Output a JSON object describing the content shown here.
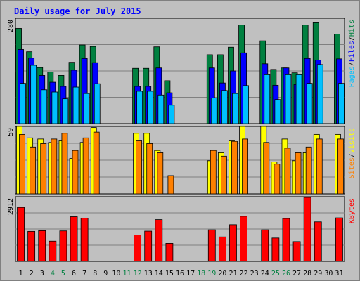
{
  "chart_data": [
    {
      "type": "bar",
      "title": "Daily usage for July 2015",
      "categories": [
        "1",
        "2",
        "3",
        "4",
        "5",
        "6",
        "7",
        "8",
        "9",
        "10",
        "11",
        "12",
        "13",
        "14",
        "15",
        "16",
        "17",
        "18",
        "19",
        "20",
        "21",
        "22",
        "23",
        "24",
        "25",
        "26",
        "27",
        "28",
        "29",
        "30",
        "31"
      ],
      "weekend_days": [
        "4",
        "5",
        "11",
        "12",
        "18",
        "19",
        "25",
        "26"
      ],
      "ylim": [
        0,
        280
      ],
      "max_label": "280",
      "legend_order": [
        "Pages",
        "/",
        "Files",
        "/",
        "Hits"
      ],
      "series": [
        {
          "name": "Hits",
          "color": "#008040",
          "values": [
            253,
            191,
            149,
            137,
            128,
            163,
            209,
            205,
            null,
            null,
            null,
            147,
            147,
            204,
            114,
            null,
            null,
            null,
            183,
            183,
            203,
            262,
            null,
            220,
            144,
            148,
            135,
            262,
            268,
            null,
            238
          ]
        },
        {
          "name": "Files",
          "color": "#0000ff",
          "values": [
            197,
            174,
            128,
            110,
            99,
            142,
            173,
            162,
            null,
            null,
            null,
            99,
            99,
            148,
            82,
            null,
            null,
            null,
            148,
            108,
            140,
            188,
            null,
            159,
            102,
            148,
            104,
            173,
            169,
            null,
            172
          ]
        },
        {
          "name": "Pages",
          "color": "#00c0ff",
          "values": [
            107,
            155,
            90,
            84,
            66,
            97,
            80,
            106,
            null,
            null,
            null,
            86,
            86,
            76,
            49,
            null,
            null,
            null,
            68,
            88,
            80,
            101,
            null,
            130,
            64,
            130,
            130,
            107,
            157,
            null,
            107
          ]
        }
      ]
    },
    {
      "type": "bar",
      "ylim": [
        0,
        59
      ],
      "max_label": "59",
      "legend_order": [
        "Sites",
        "/",
        "Visits"
      ],
      "series": [
        {
          "name": "Visits",
          "color": "#ffff00",
          "values": [
            59,
            49,
            48,
            45,
            47,
            31,
            45,
            58,
            null,
            null,
            null,
            53,
            53,
            38,
            null,
            null,
            null,
            null,
            29,
            36,
            47,
            59,
            null,
            59,
            28,
            48,
            29,
            36,
            52,
            null,
            52
          ]
        },
        {
          "name": "Sites",
          "color": "#ff8000",
          "values": [
            52,
            41,
            44,
            48,
            53,
            38,
            49,
            54,
            null,
            null,
            null,
            47,
            44,
            36,
            16,
            null,
            null,
            null,
            38,
            33,
            46,
            48,
            null,
            45,
            26,
            40,
            36,
            41,
            48,
            null,
            48
          ]
        }
      ]
    },
    {
      "type": "bar",
      "ylim": [
        0,
        2912
      ],
      "max_label": "2912",
      "legend_order": [
        "KBytes"
      ],
      "series": [
        {
          "name": "KBytes",
          "color": "#ff0000",
          "values": [
            2430,
            1350,
            1380,
            910,
            1370,
            2010,
            1950,
            null,
            null,
            null,
            null,
            1190,
            1360,
            1880,
            810,
            null,
            null,
            null,
            1420,
            1100,
            1650,
            2030,
            null,
            1420,
            1050,
            1930,
            890,
            2880,
            1780,
            null,
            1960
          ]
        }
      ]
    }
  ]
}
